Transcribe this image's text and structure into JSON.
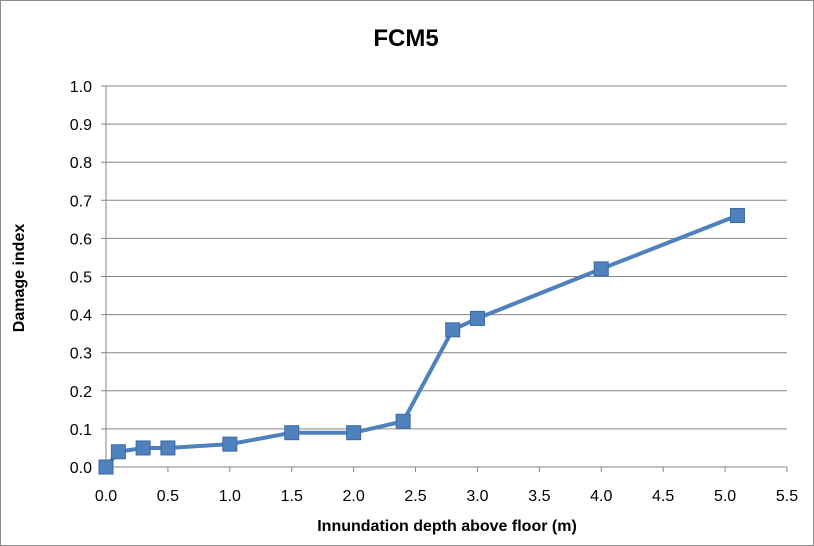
{
  "chart_data": {
    "type": "line",
    "title": "FCM5",
    "xlabel": "Innundation depth above floor (m)",
    "ylabel": "Damage index",
    "xlim": [
      0,
      5.5
    ],
    "ylim": [
      0,
      1.0
    ],
    "x_ticks": [
      "0.0",
      "0.5",
      "1.0",
      "1.5",
      "2.0",
      "2.5",
      "3.0",
      "3.5",
      "4.0",
      "4.5",
      "5.0",
      "5.5"
    ],
    "y_ticks": [
      "0.0",
      "0.1",
      "0.2",
      "0.3",
      "0.4",
      "0.5",
      "0.6",
      "0.7",
      "0.8",
      "0.9",
      "1.0"
    ],
    "grid": "horizontal",
    "legend": "none",
    "series": [
      {
        "color": "#4f81bd",
        "marker": "square",
        "x": [
          0.0,
          0.1,
          0.3,
          0.5,
          1.0,
          1.5,
          2.0,
          2.4,
          2.8,
          3.0,
          4.0,
          5.1
        ],
        "y": [
          0.0,
          0.04,
          0.05,
          0.05,
          0.06,
          0.09,
          0.09,
          0.12,
          0.36,
          0.39,
          0.52,
          0.66
        ]
      }
    ],
    "colors": {
      "gridline": "#868686",
      "axis": "#868686"
    }
  }
}
